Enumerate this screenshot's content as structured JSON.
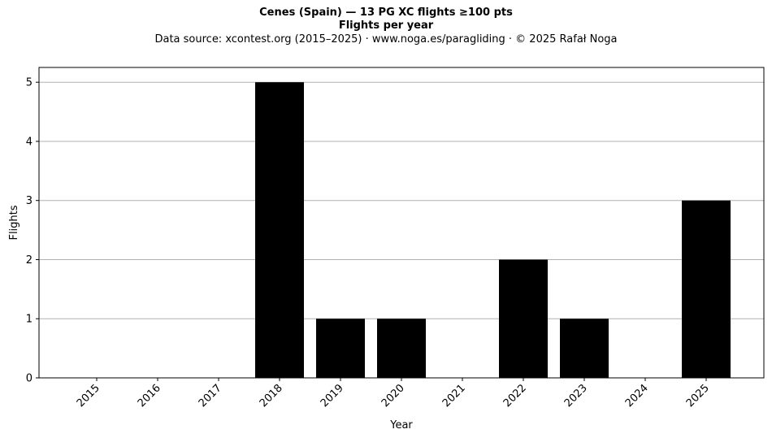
{
  "chart_data": {
    "type": "bar",
    "title": "Cenes (Spain)  —  13 PG XC flights ≥100 pts",
    "subtitle": "Flights per year",
    "source_line": "Data source: xcontest.org (2015–2025)  ·  www.noga.es/paragliding  ·  © 2025 Rafał Noga",
    "xlabel": "Year",
    "ylabel": "Flights",
    "categories": [
      "2015",
      "2016",
      "2017",
      "2018",
      "2019",
      "2020",
      "2021",
      "2022",
      "2023",
      "2024",
      "2025"
    ],
    "values": [
      0,
      0,
      0,
      5,
      1,
      1,
      0,
      2,
      1,
      0,
      3
    ],
    "ylim": [
      0,
      5.25
    ],
    "yticks": [
      "0",
      "1",
      "2",
      "3",
      "4",
      "5"
    ],
    "grid": "horizontal",
    "bar_color": "#000000",
    "grid_color": "#b0b0b0"
  }
}
